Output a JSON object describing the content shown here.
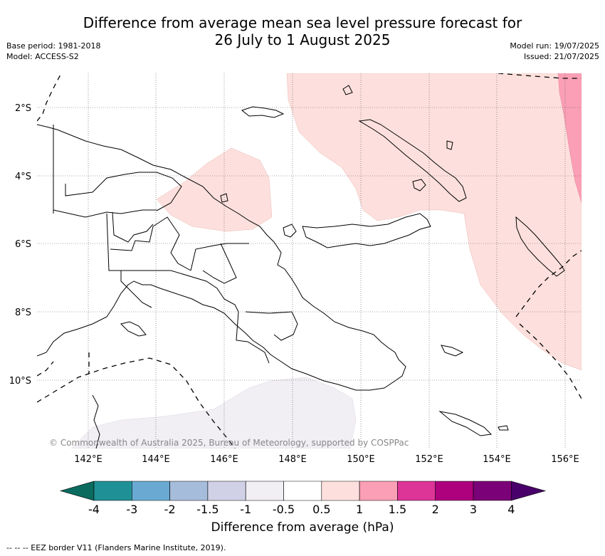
{
  "header": {
    "title_line1": "Difference from average mean sea level pressure forecast for",
    "title_line2": "26 July to 1 August 2025",
    "base_period": "Base period: 1981-2018",
    "model": "Model: ACCESS-S2",
    "model_run": "Model run: 19/07/2025",
    "issued": "Issued: 21/07/2025"
  },
  "map": {
    "lat_labels": [
      "2°S",
      "4°S",
      "6°S",
      "8°S",
      "10°S"
    ],
    "lon_labels": [
      "142°E",
      "144°E",
      "146°E",
      "148°E",
      "150°E",
      "152°E",
      "154°E",
      "156°E"
    ],
    "copyright": "© Commonwealth of Australia 2025, Bureau of Meteorology, supported by COSPPac"
  },
  "colorbar": {
    "colors": [
      "#0b6b5f",
      "#1f9196",
      "#6aaad2",
      "#a6bcdb",
      "#d0d1e6",
      "#f1eef4",
      "#ffffff",
      "#fde0dd",
      "#fa9fb5",
      "#dd3497",
      "#ae017e",
      "#7a0177",
      "#49006a"
    ],
    "ticks": [
      "-4",
      "-3",
      "-2",
      "-1.5",
      "-1",
      "-0.5",
      "0.5",
      "1",
      "1.5",
      "2",
      "3",
      "4"
    ],
    "label": "Difference from average (hPa)"
  },
  "legend": {
    "eez_note": "--  --  -- EEZ border V11 (Flanders Marine Institute, 2019)."
  }
}
